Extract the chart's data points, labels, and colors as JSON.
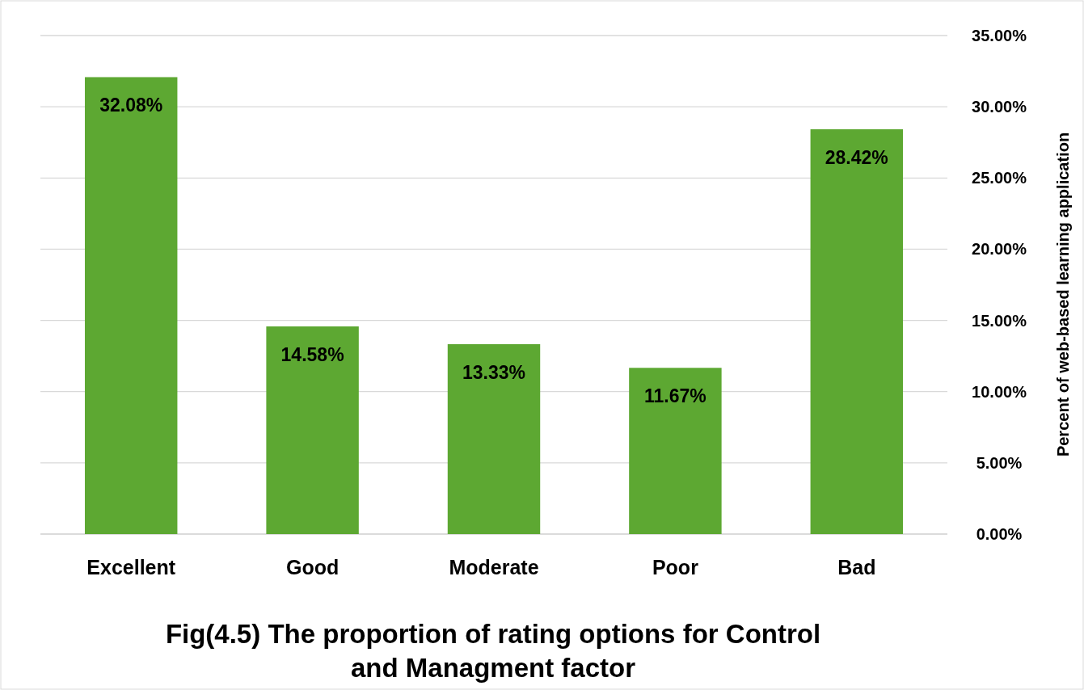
{
  "chart_data": {
    "type": "bar",
    "title": "Fig(4.5) The proportion of rating options for Control and Managment factor",
    "ylabel": "Percent of web-based learning application",
    "categories": [
      "Excellent",
      "Good",
      "Moderate",
      "Poor",
      "Bad"
    ],
    "values": [
      32.08,
      14.58,
      13.33,
      11.67,
      28.42
    ],
    "value_labels": [
      "32.08%",
      "14.58%",
      "13.33%",
      "11.67%",
      "28.42%"
    ],
    "color": "#5da832",
    "ylim": [
      0,
      35
    ],
    "yticks": [
      {
        "value": 0,
        "label": "0.00%"
      },
      {
        "value": 5,
        "label": "5.00%"
      },
      {
        "value": 10,
        "label": "10.00%"
      },
      {
        "value": 15,
        "label": "15.00%"
      },
      {
        "value": 20,
        "label": "20.00%"
      },
      {
        "value": 25,
        "label": "25.00%"
      },
      {
        "value": 30,
        "label": "30.00%"
      },
      {
        "value": 35,
        "label": "35.00%"
      }
    ],
    "grid": "y"
  }
}
